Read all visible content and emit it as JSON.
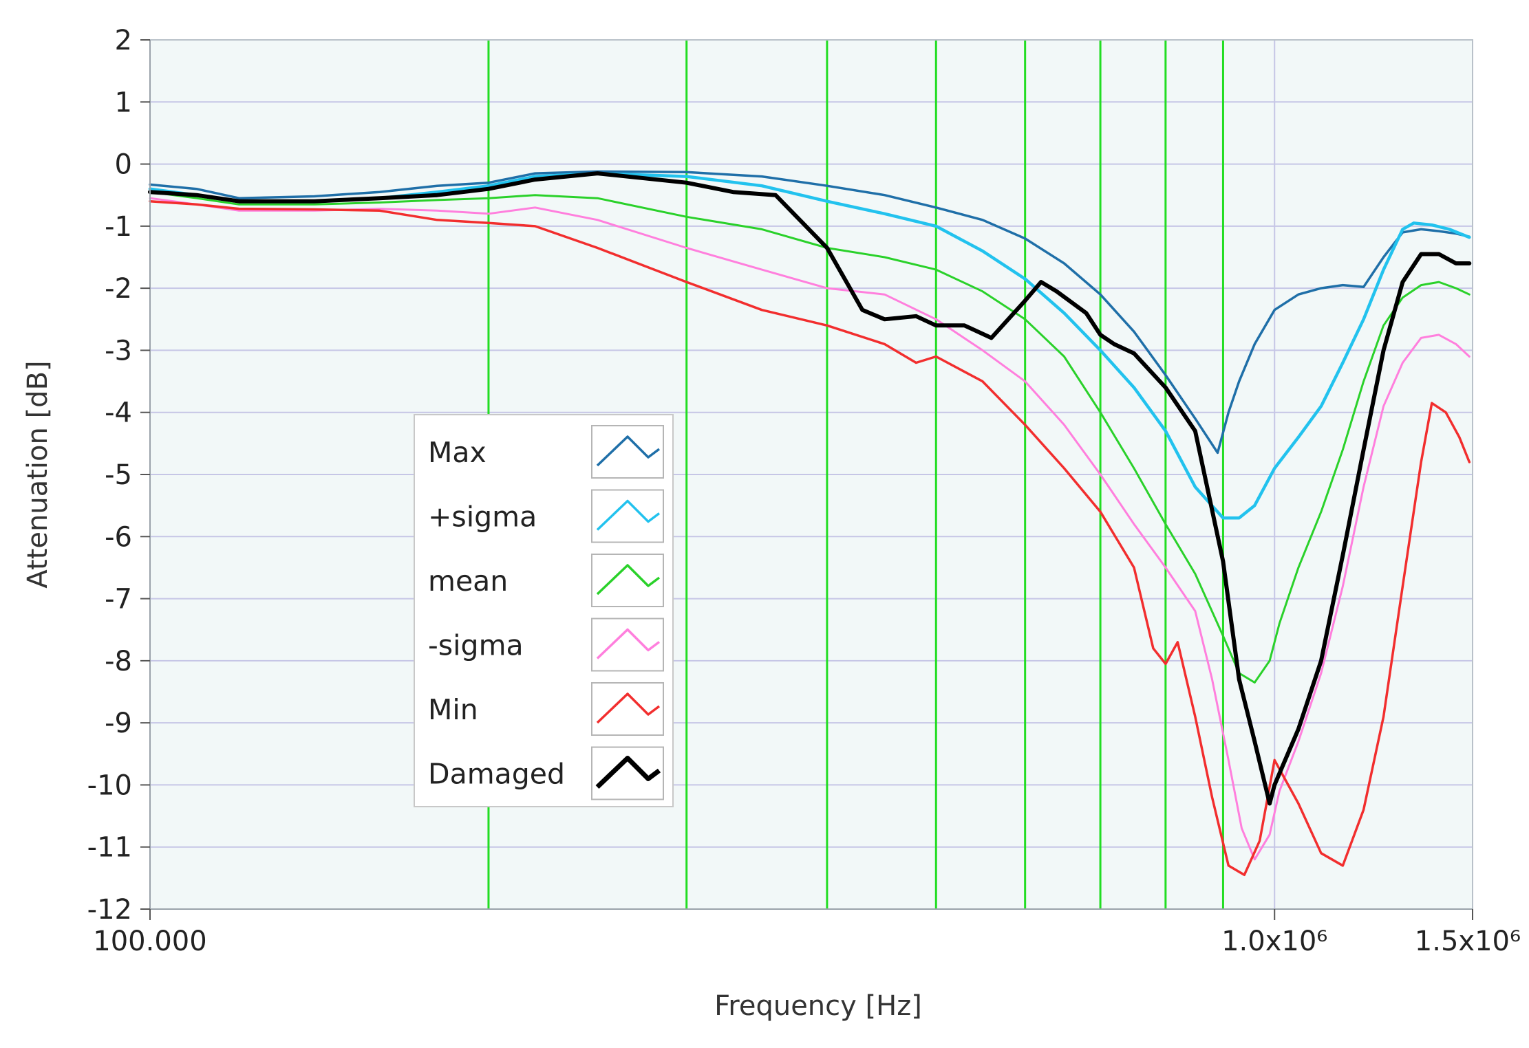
{
  "chart_data": {
    "type": "line",
    "xlabel": "Frequency [Hz]",
    "ylabel": "Attenuation [dB]",
    "x_scale": "log",
    "xlim": [
      100000,
      1500000
    ],
    "ylim": [
      -12,
      2
    ],
    "y_ticks": [
      2,
      1,
      0,
      -1,
      -2,
      -3,
      -4,
      -5,
      -6,
      -7,
      -8,
      -9,
      -10,
      -11,
      -12
    ],
    "y_tick_labels": [
      "2",
      "1",
      "0",
      "-1",
      "-2",
      "-3",
      "-4",
      "-5",
      "-6",
      "-7",
      "-8",
      "-9",
      "-10",
      "-11",
      "-12"
    ],
    "x_ticks": [
      {
        "value": 100000,
        "label": "100.000"
      },
      {
        "value": 1000000,
        "label": "1.0x10⁶"
      },
      {
        "value": 1500000,
        "label": "1.5x10⁶"
      }
    ],
    "grid": true,
    "plot_background": "#f2f8f8",
    "grid_color": "#c6c6e6",
    "marker_lines_color": "#22dd22",
    "marker_lines_x": [
      200000,
      300000,
      400000,
      500000,
      600000,
      700000,
      800000,
      900000
    ],
    "legend_position": "lower-left",
    "series": [
      {
        "name": "Max",
        "color": "#1f6fa8",
        "points": [
          [
            100000,
            -0.33
          ],
          [
            110000,
            -0.4
          ],
          [
            120000,
            -0.55
          ],
          [
            140000,
            -0.52
          ],
          [
            160000,
            -0.45
          ],
          [
            180000,
            -0.35
          ],
          [
            200000,
            -0.3
          ],
          [
            220000,
            -0.15
          ],
          [
            250000,
            -0.12
          ],
          [
            300000,
            -0.13
          ],
          [
            350000,
            -0.2
          ],
          [
            400000,
            -0.35
          ],
          [
            450000,
            -0.5
          ],
          [
            500000,
            -0.7
          ],
          [
            550000,
            -0.9
          ],
          [
            600000,
            -1.2
          ],
          [
            650000,
            -1.6
          ],
          [
            700000,
            -2.1
          ],
          [
            750000,
            -2.7
          ],
          [
            800000,
            -3.4
          ],
          [
            850000,
            -4.1
          ],
          [
            890000,
            -4.65
          ],
          [
            910000,
            -4.0
          ],
          [
            930000,
            -3.5
          ],
          [
            960000,
            -2.9
          ],
          [
            1000000,
            -2.35
          ],
          [
            1050000,
            -2.1
          ],
          [
            1100000,
            -2.0
          ],
          [
            1150000,
            -1.95
          ],
          [
            1200000,
            -1.98
          ],
          [
            1250000,
            -1.5
          ],
          [
            1300000,
            -1.1
          ],
          [
            1350000,
            -1.05
          ],
          [
            1400000,
            -1.08
          ],
          [
            1450000,
            -1.12
          ],
          [
            1490000,
            -1.17
          ]
        ]
      },
      {
        "name": "+sigma",
        "color": "#22c2ee",
        "points": [
          [
            100000,
            -0.4
          ],
          [
            110000,
            -0.5
          ],
          [
            120000,
            -0.6
          ],
          [
            140000,
            -0.6
          ],
          [
            160000,
            -0.55
          ],
          [
            180000,
            -0.45
          ],
          [
            200000,
            -0.35
          ],
          [
            220000,
            -0.2
          ],
          [
            250000,
            -0.15
          ],
          [
            300000,
            -0.2
          ],
          [
            350000,
            -0.35
          ],
          [
            400000,
            -0.6
          ],
          [
            450000,
            -0.8
          ],
          [
            500000,
            -1.0
          ],
          [
            550000,
            -1.4
          ],
          [
            600000,
            -1.85
          ],
          [
            650000,
            -2.4
          ],
          [
            700000,
            -3.0
          ],
          [
            750000,
            -3.6
          ],
          [
            800000,
            -4.3
          ],
          [
            850000,
            -5.2
          ],
          [
            900000,
            -5.7
          ],
          [
            930000,
            -5.7
          ],
          [
            960000,
            -5.5
          ],
          [
            1000000,
            -4.9
          ],
          [
            1050000,
            -4.4
          ],
          [
            1100000,
            -3.9
          ],
          [
            1150000,
            -3.2
          ],
          [
            1200000,
            -2.5
          ],
          [
            1250000,
            -1.7
          ],
          [
            1300000,
            -1.05
          ],
          [
            1330000,
            -0.95
          ],
          [
            1380000,
            -0.98
          ],
          [
            1430000,
            -1.05
          ],
          [
            1490000,
            -1.18
          ]
        ]
      },
      {
        "name": "mean",
        "color": "#2ad12a",
        "points": [
          [
            100000,
            -0.45
          ],
          [
            110000,
            -0.55
          ],
          [
            120000,
            -0.65
          ],
          [
            140000,
            -0.65
          ],
          [
            160000,
            -0.62
          ],
          [
            180000,
            -0.58
          ],
          [
            200000,
            -0.55
          ],
          [
            220000,
            -0.5
          ],
          [
            250000,
            -0.55
          ],
          [
            300000,
            -0.85
          ],
          [
            350000,
            -1.05
          ],
          [
            400000,
            -1.35
          ],
          [
            450000,
            -1.5
          ],
          [
            500000,
            -1.7
          ],
          [
            550000,
            -2.05
          ],
          [
            600000,
            -2.5
          ],
          [
            650000,
            -3.1
          ],
          [
            700000,
            -4.0
          ],
          [
            750000,
            -4.9
          ],
          [
            800000,
            -5.8
          ],
          [
            850000,
            -6.6
          ],
          [
            900000,
            -7.6
          ],
          [
            930000,
            -8.2
          ],
          [
            960000,
            -8.35
          ],
          [
            990000,
            -8.0
          ],
          [
            1010000,
            -7.4
          ],
          [
            1050000,
            -6.5
          ],
          [
            1100000,
            -5.6
          ],
          [
            1150000,
            -4.6
          ],
          [
            1200000,
            -3.5
          ],
          [
            1250000,
            -2.6
          ],
          [
            1300000,
            -2.15
          ],
          [
            1350000,
            -1.95
          ],
          [
            1400000,
            -1.9
          ],
          [
            1450000,
            -2.0
          ],
          [
            1490000,
            -2.1
          ]
        ]
      },
      {
        "name": "-sigma",
        "color": "#ff7fdd",
        "points": [
          [
            100000,
            -0.55
          ],
          [
            110000,
            -0.65
          ],
          [
            120000,
            -0.75
          ],
          [
            140000,
            -0.75
          ],
          [
            160000,
            -0.72
          ],
          [
            180000,
            -0.75
          ],
          [
            200000,
            -0.8
          ],
          [
            220000,
            -0.7
          ],
          [
            250000,
            -0.9
          ],
          [
            300000,
            -1.35
          ],
          [
            350000,
            -1.7
          ],
          [
            400000,
            -2.0
          ],
          [
            450000,
            -2.1
          ],
          [
            500000,
            -2.5
          ],
          [
            550000,
            -3.0
          ],
          [
            600000,
            -3.5
          ],
          [
            650000,
            -4.2
          ],
          [
            700000,
            -5.0
          ],
          [
            750000,
            -5.8
          ],
          [
            800000,
            -6.5
          ],
          [
            850000,
            -7.2
          ],
          [
            880000,
            -8.3
          ],
          [
            910000,
            -9.6
          ],
          [
            935000,
            -10.7
          ],
          [
            960000,
            -11.2
          ],
          [
            990000,
            -10.8
          ],
          [
            1010000,
            -10.1
          ],
          [
            1050000,
            -9.3
          ],
          [
            1100000,
            -8.2
          ],
          [
            1150000,
            -6.8
          ],
          [
            1200000,
            -5.2
          ],
          [
            1250000,
            -3.9
          ],
          [
            1300000,
            -3.2
          ],
          [
            1350000,
            -2.8
          ],
          [
            1400000,
            -2.75
          ],
          [
            1450000,
            -2.9
          ],
          [
            1490000,
            -3.1
          ]
        ]
      },
      {
        "name": "Min",
        "color": "#f22e2e",
        "points": [
          [
            100000,
            -0.6
          ],
          [
            110000,
            -0.65
          ],
          [
            120000,
            -0.72
          ],
          [
            140000,
            -0.73
          ],
          [
            160000,
            -0.75
          ],
          [
            180000,
            -0.9
          ],
          [
            200000,
            -0.95
          ],
          [
            220000,
            -1.0
          ],
          [
            250000,
            -1.35
          ],
          [
            300000,
            -1.9
          ],
          [
            350000,
            -2.35
          ],
          [
            400000,
            -2.6
          ],
          [
            450000,
            -2.9
          ],
          [
            480000,
            -3.2
          ],
          [
            500000,
            -3.1
          ],
          [
            550000,
            -3.5
          ],
          [
            600000,
            -4.2
          ],
          [
            650000,
            -4.9
          ],
          [
            700000,
            -5.6
          ],
          [
            750000,
            -6.5
          ],
          [
            780000,
            -7.8
          ],
          [
            800000,
            -8.05
          ],
          [
            820000,
            -7.7
          ],
          [
            850000,
            -8.9
          ],
          [
            880000,
            -10.2
          ],
          [
            910000,
            -11.3
          ],
          [
            940000,
            -11.45
          ],
          [
            970000,
            -10.9
          ],
          [
            1000000,
            -9.6
          ],
          [
            1050000,
            -10.3
          ],
          [
            1100000,
            -11.1
          ],
          [
            1150000,
            -11.3
          ],
          [
            1200000,
            -10.4
          ],
          [
            1250000,
            -8.9
          ],
          [
            1300000,
            -6.8
          ],
          [
            1350000,
            -4.8
          ],
          [
            1380000,
            -3.85
          ],
          [
            1420000,
            -4.0
          ],
          [
            1460000,
            -4.4
          ],
          [
            1490000,
            -4.8
          ]
        ]
      },
      {
        "name": "Damaged",
        "color": "#000000",
        "points": [
          [
            100000,
            -0.45
          ],
          [
            110000,
            -0.5
          ],
          [
            120000,
            -0.6
          ],
          [
            140000,
            -0.6
          ],
          [
            160000,
            -0.55
          ],
          [
            180000,
            -0.5
          ],
          [
            200000,
            -0.4
          ],
          [
            220000,
            -0.25
          ],
          [
            250000,
            -0.15
          ],
          [
            300000,
            -0.3
          ],
          [
            330000,
            -0.45
          ],
          [
            360000,
            -0.5
          ],
          [
            400000,
            -1.35
          ],
          [
            430000,
            -2.35
          ],
          [
            450000,
            -2.5
          ],
          [
            480000,
            -2.45
          ],
          [
            500000,
            -2.6
          ],
          [
            530000,
            -2.6
          ],
          [
            560000,
            -2.8
          ],
          [
            600000,
            -2.2
          ],
          [
            620000,
            -1.9
          ],
          [
            640000,
            -2.05
          ],
          [
            680000,
            -2.4
          ],
          [
            700000,
            -2.75
          ],
          [
            720000,
            -2.9
          ],
          [
            750000,
            -3.05
          ],
          [
            800000,
            -3.6
          ],
          [
            850000,
            -4.3
          ],
          [
            900000,
            -6.4
          ],
          [
            930000,
            -8.3
          ],
          [
            960000,
            -9.3
          ],
          [
            990000,
            -10.3
          ],
          [
            1000000,
            -10.0
          ],
          [
            1050000,
            -9.1
          ],
          [
            1100000,
            -8.0
          ],
          [
            1150000,
            -6.3
          ],
          [
            1200000,
            -4.6
          ],
          [
            1250000,
            -3.0
          ],
          [
            1300000,
            -1.9
          ],
          [
            1350000,
            -1.45
          ],
          [
            1400000,
            -1.45
          ],
          [
            1450000,
            -1.6
          ],
          [
            1490000,
            -1.6
          ]
        ]
      }
    ]
  }
}
